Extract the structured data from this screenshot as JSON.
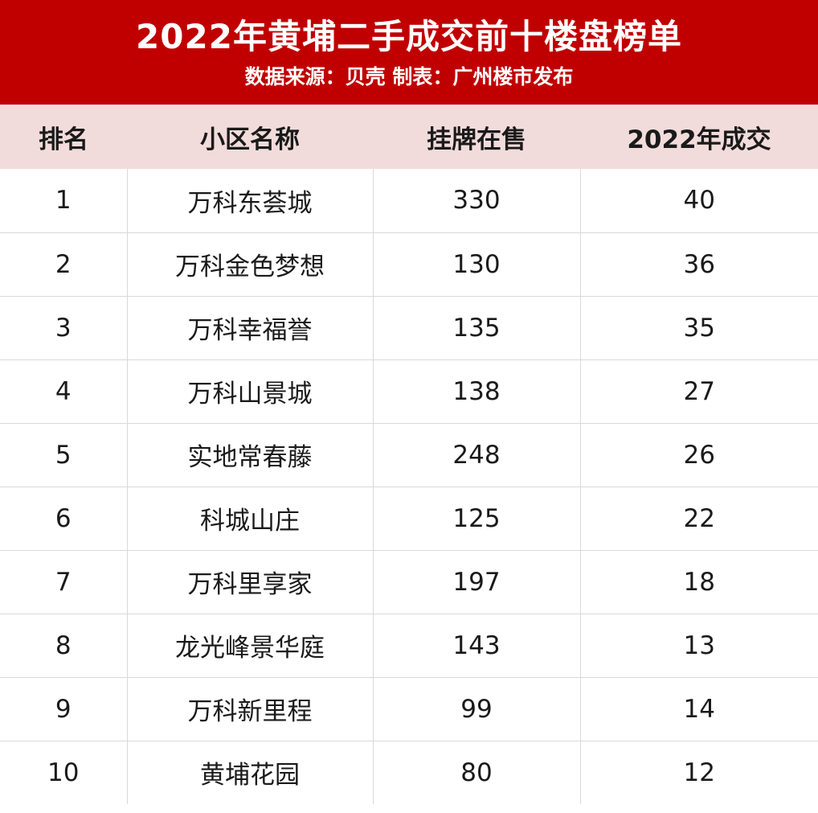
{
  "header": {
    "title": "2022年黄埔二手成交前十楼盘榜单",
    "subtitle": "数据来源：贝壳 制表：广州楼市发布",
    "background_color": "#c00000"
  },
  "table": {
    "header_background": "#f2dcdb",
    "columns": [
      "排名",
      "小区名称",
      "挂牌在售",
      "2022年成交"
    ],
    "rows": [
      {
        "rank": "1",
        "name": "万科东荟城",
        "listed": "330",
        "deals": "40"
      },
      {
        "rank": "2",
        "name": "万科金色梦想",
        "listed": "130",
        "deals": "36"
      },
      {
        "rank": "3",
        "name": "万科幸福誉",
        "listed": "135",
        "deals": "35"
      },
      {
        "rank": "4",
        "name": "万科山景城",
        "listed": "138",
        "deals": "27"
      },
      {
        "rank": "5",
        "name": "实地常春藤",
        "listed": "248",
        "deals": "26"
      },
      {
        "rank": "6",
        "name": "科城山庄",
        "listed": "125",
        "deals": "22"
      },
      {
        "rank": "7",
        "name": "万科里享家",
        "listed": "197",
        "deals": "18"
      },
      {
        "rank": "8",
        "name": "龙光峰景华庭",
        "listed": "143",
        "deals": "13"
      },
      {
        "rank": "9",
        "name": "万科新里程",
        "listed": "99",
        "deals": "14"
      },
      {
        "rank": "10",
        "name": "黄埔花园",
        "listed": "80",
        "deals": "12"
      }
    ]
  }
}
